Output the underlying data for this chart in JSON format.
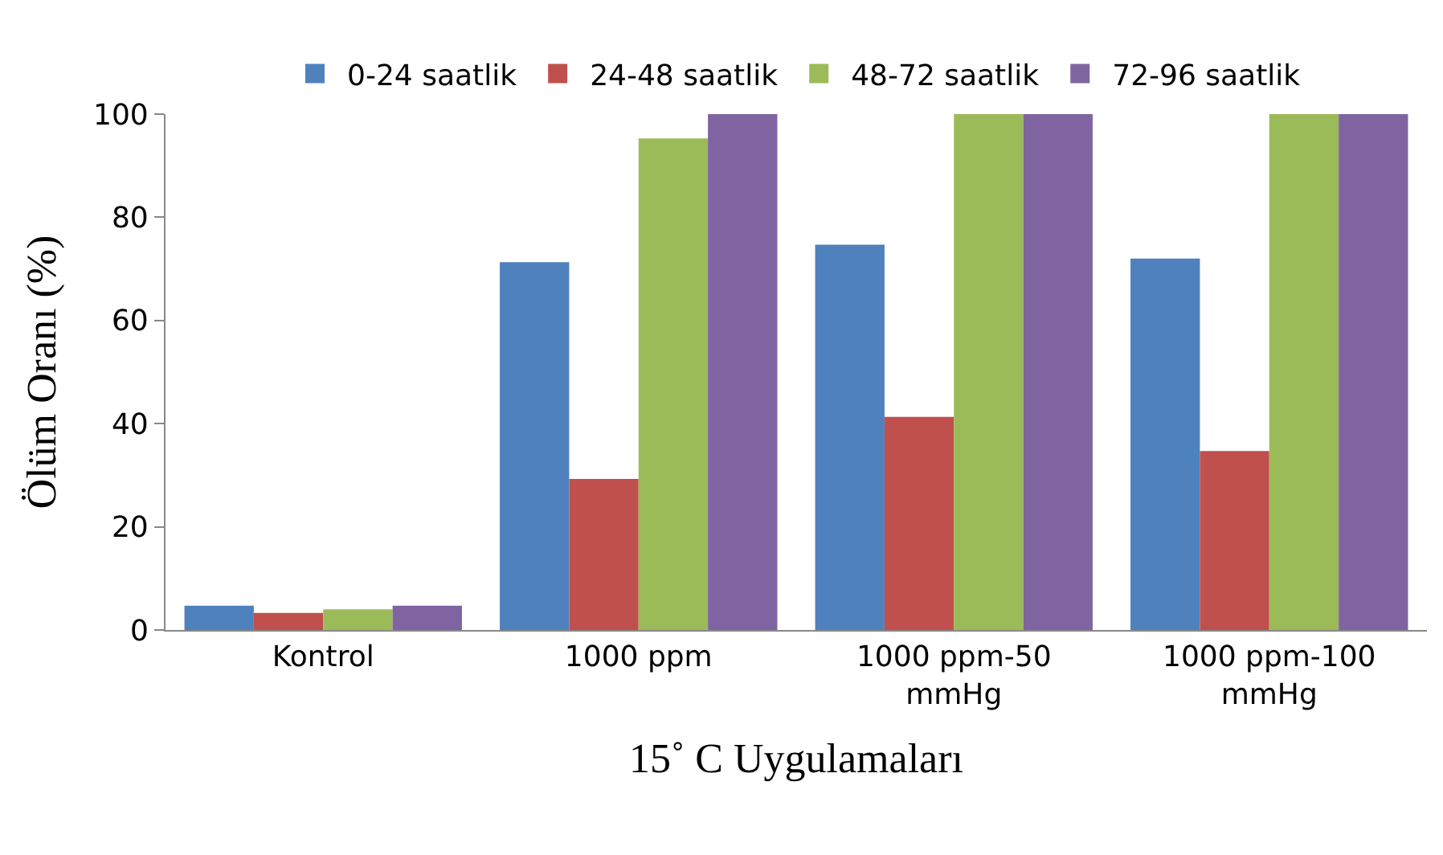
{
  "chart_data": {
    "type": "bar",
    "xlabel": "15˚ C Uygulamaları",
    "ylabel": "Ölüm Oranı (%)",
    "categories": [
      "Kontrol",
      "1000 ppm",
      "1000 ppm-50\nmmHg",
      "1000 ppm-100\nmmHg"
    ],
    "series": [
      {
        "name": "0-24 saatlik",
        "color": "#4f81bd",
        "values": [
          4.7,
          71.3,
          74.7,
          72
        ]
      },
      {
        "name": "24-48 saatlik",
        "color": "#c0504d",
        "values": [
          3.3,
          29.3,
          41.3,
          34.7
        ]
      },
      {
        "name": "48-72 saatlik",
        "color": "#9bbb59",
        "values": [
          4.0,
          95.3,
          100,
          100
        ]
      },
      {
        "name": "72-96 saatlik",
        "color": "#8064a2",
        "values": [
          4.7,
          100,
          100,
          100
        ]
      }
    ],
    "ylim": [
      0,
      100
    ],
    "yticks": [
      0,
      20,
      40,
      60,
      80,
      100
    ],
    "grid": false,
    "legend": "top"
  }
}
